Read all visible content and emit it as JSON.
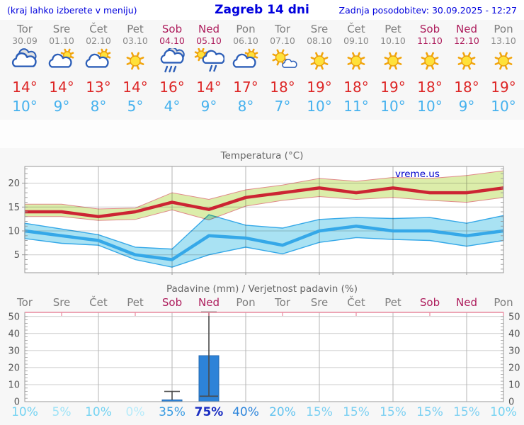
{
  "header": {
    "hint": "(kraj lahko izberete v meniju)",
    "title": "Zagreb 14 dni",
    "updated": "Zadnja posodobitev: 30.09.2025 - 12:27"
  },
  "colors": {
    "header_blue": "#0000dd",
    "weekday_gray": "#7d7d7d",
    "weekend_red": "#ad1c5c",
    "tmax_red": "#dd2727",
    "tmin_blue": "#45b1ee",
    "max_line": "#cc2433",
    "max_band_fill": "#dcedaa",
    "max_band_edge": "#e08a8a",
    "min_line": "#35a8e8",
    "min_band_fill": "#a9e2f3",
    "bar_blue": "#2d83d8",
    "whisker_gray": "#4a4a4a",
    "grid_gray": "#cccccc",
    "vgrid_gray": "#b4b4b4",
    "plot_border": "#999999",
    "pink_axis": "#e8899e",
    "watermark_blue": "#0000cc"
  },
  "forecast": {
    "days": [
      {
        "name": "Tor",
        "date": "30.09",
        "weekend": false,
        "icon": "cloudy",
        "tmax": "14°",
        "tmin": "10°"
      },
      {
        "name": "Sre",
        "date": "01.10",
        "weekend": false,
        "icon": "sun-cloud",
        "tmax": "14°",
        "tmin": "9°"
      },
      {
        "name": "Čet",
        "date": "02.10",
        "weekend": false,
        "icon": "sun-cloud",
        "tmax": "13°",
        "tmin": "8°"
      },
      {
        "name": "Pet",
        "date": "03.10",
        "weekend": false,
        "icon": "sun",
        "tmax": "14°",
        "tmin": "5°"
      },
      {
        "name": "Sob",
        "date": "04.10",
        "weekend": true,
        "icon": "rain",
        "tmax": "16°",
        "tmin": "4°"
      },
      {
        "name": "Ned",
        "date": "05.10",
        "weekend": true,
        "icon": "sun-rain",
        "tmax": "14°",
        "tmin": "9°"
      },
      {
        "name": "Pon",
        "date": "06.10",
        "weekend": false,
        "icon": "sun-cloud",
        "tmax": "17°",
        "tmin": "8°"
      },
      {
        "name": "Tor",
        "date": "07.10",
        "weekend": false,
        "icon": "sun-small-cloud",
        "tmax": "18°",
        "tmin": "7°"
      },
      {
        "name": "Sre",
        "date": "08.10",
        "weekend": false,
        "icon": "sun",
        "tmax": "19°",
        "tmin": "10°"
      },
      {
        "name": "Čet",
        "date": "09.10",
        "weekend": false,
        "icon": "sun",
        "tmax": "18°",
        "tmin": "11°"
      },
      {
        "name": "Pet",
        "date": "10.10",
        "weekend": false,
        "icon": "sun",
        "tmax": "19°",
        "tmin": "10°"
      },
      {
        "name": "Sob",
        "date": "11.10",
        "weekend": true,
        "icon": "sun",
        "tmax": "18°",
        "tmin": "10°"
      },
      {
        "name": "Ned",
        "date": "12.10",
        "weekend": true,
        "icon": "sun",
        "tmax": "18°",
        "tmin": "9°"
      },
      {
        "name": "Pon",
        "date": "13.10",
        "weekend": false,
        "icon": "sun",
        "tmax": "19°",
        "tmin": "10°"
      }
    ]
  },
  "chart_data": [
    {
      "type": "line",
      "title": "Temperatura (°C)",
      "watermark": "vreme.us",
      "x": [
        "Tor 30.09",
        "Sre 01.10",
        "Čet 02.10",
        "Pet 03.10",
        "Sob 04.10",
        "Ned 05.10",
        "Pon 06.10",
        "Tor 07.10",
        "Sre 08.10",
        "Čet 09.10",
        "Pet 10.10",
        "Sob 11.10",
        "Ned 12.10",
        "Pon 13.10"
      ],
      "ylim": [
        1.25,
        23.5
      ],
      "yticks": [
        5,
        10,
        15,
        20
      ],
      "grid": true,
      "vgrid_indices": [
        2,
        4,
        6,
        8,
        10,
        12
      ],
      "series": [
        {
          "name": "max_temp",
          "values": [
            14,
            14,
            13,
            14,
            16,
            14.5,
            17,
            18,
            19,
            18,
            19,
            18,
            18,
            19
          ]
        },
        {
          "name": "max_upper",
          "values": [
            15.6,
            15.6,
            14.6,
            14.8,
            18,
            16.6,
            18.6,
            19.6,
            21,
            20.4,
            21.2,
            21,
            21.6,
            22.6
          ]
        },
        {
          "name": "max_lower",
          "values": [
            13,
            13,
            12.2,
            12.4,
            14.4,
            12.3,
            15.2,
            16.4,
            17.2,
            16.6,
            17,
            16.4,
            16,
            17
          ]
        },
        {
          "name": "min_temp",
          "values": [
            10,
            9,
            8,
            5,
            4,
            9,
            8.5,
            7,
            10,
            11,
            10,
            10,
            9,
            10
          ]
        },
        {
          "name": "min_upper",
          "values": [
            11.6,
            10.4,
            9.2,
            6.6,
            6.2,
            13.4,
            11.2,
            10.6,
            12.4,
            12.8,
            12.6,
            12.8,
            11.6,
            13.2
          ]
        },
        {
          "name": "min_lower",
          "values": [
            8.4,
            7.4,
            7,
            4,
            2.4,
            5,
            6.6,
            5.2,
            7.6,
            8.6,
            8.2,
            8,
            6.8,
            8
          ]
        }
      ]
    },
    {
      "type": "bar",
      "title": "Padavine (mm) / Verjetnost padavin (%)",
      "categories": [
        "Tor",
        "Sre",
        "Čet",
        "Pet",
        "Sob",
        "Ned",
        "Pon",
        "Tor",
        "Sre",
        "Čet",
        "Pet",
        "Sob",
        "Ned",
        "Pon"
      ],
      "weekend_indices": [
        4,
        5,
        11,
        12
      ],
      "values_mm": [
        0,
        0,
        0,
        0,
        1,
        27,
        0,
        0,
        0,
        0,
        0,
        0,
        0,
        0
      ],
      "whiskers": [
        {
          "index": 4,
          "lo": 1,
          "hi": 6,
          "lo_cap": false
        },
        {
          "index": 5,
          "lo": 3.2,
          "hi": 52.6,
          "lo_cap": true
        }
      ],
      "ylim": [
        0,
        52.4
      ],
      "yticks": [
        0,
        10,
        20,
        30,
        40,
        50
      ],
      "grid": true,
      "vgrid_indices": [
        2,
        4,
        6,
        8,
        10,
        12
      ],
      "probabilities": [
        {
          "label": "10%",
          "color": "#74d3f2",
          "bold": false
        },
        {
          "label": "5%",
          "color": "#9fe3f7",
          "bold": false
        },
        {
          "label": "10%",
          "color": "#74d3f2",
          "bold": false
        },
        {
          "label": "0%",
          "color": "#b7ebfa",
          "bold": false
        },
        {
          "label": "35%",
          "color": "#3a9ce2",
          "bold": false
        },
        {
          "label": "75%",
          "color": "#1a2ec2",
          "bold": true
        },
        {
          "label": "40%",
          "color": "#2e86dc",
          "bold": false
        },
        {
          "label": "20%",
          "color": "#62c3ef",
          "bold": false
        },
        {
          "label": "15%",
          "color": "#7cd0f2",
          "bold": false
        },
        {
          "label": "15%",
          "color": "#7cd0f2",
          "bold": false
        },
        {
          "label": "15%",
          "color": "#7cd0f2",
          "bold": false
        },
        {
          "label": "15%",
          "color": "#7cd0f2",
          "bold": false
        },
        {
          "label": "15%",
          "color": "#7cd0f2",
          "bold": false
        },
        {
          "label": "10%",
          "color": "#74d3f2",
          "bold": false
        }
      ]
    }
  ]
}
